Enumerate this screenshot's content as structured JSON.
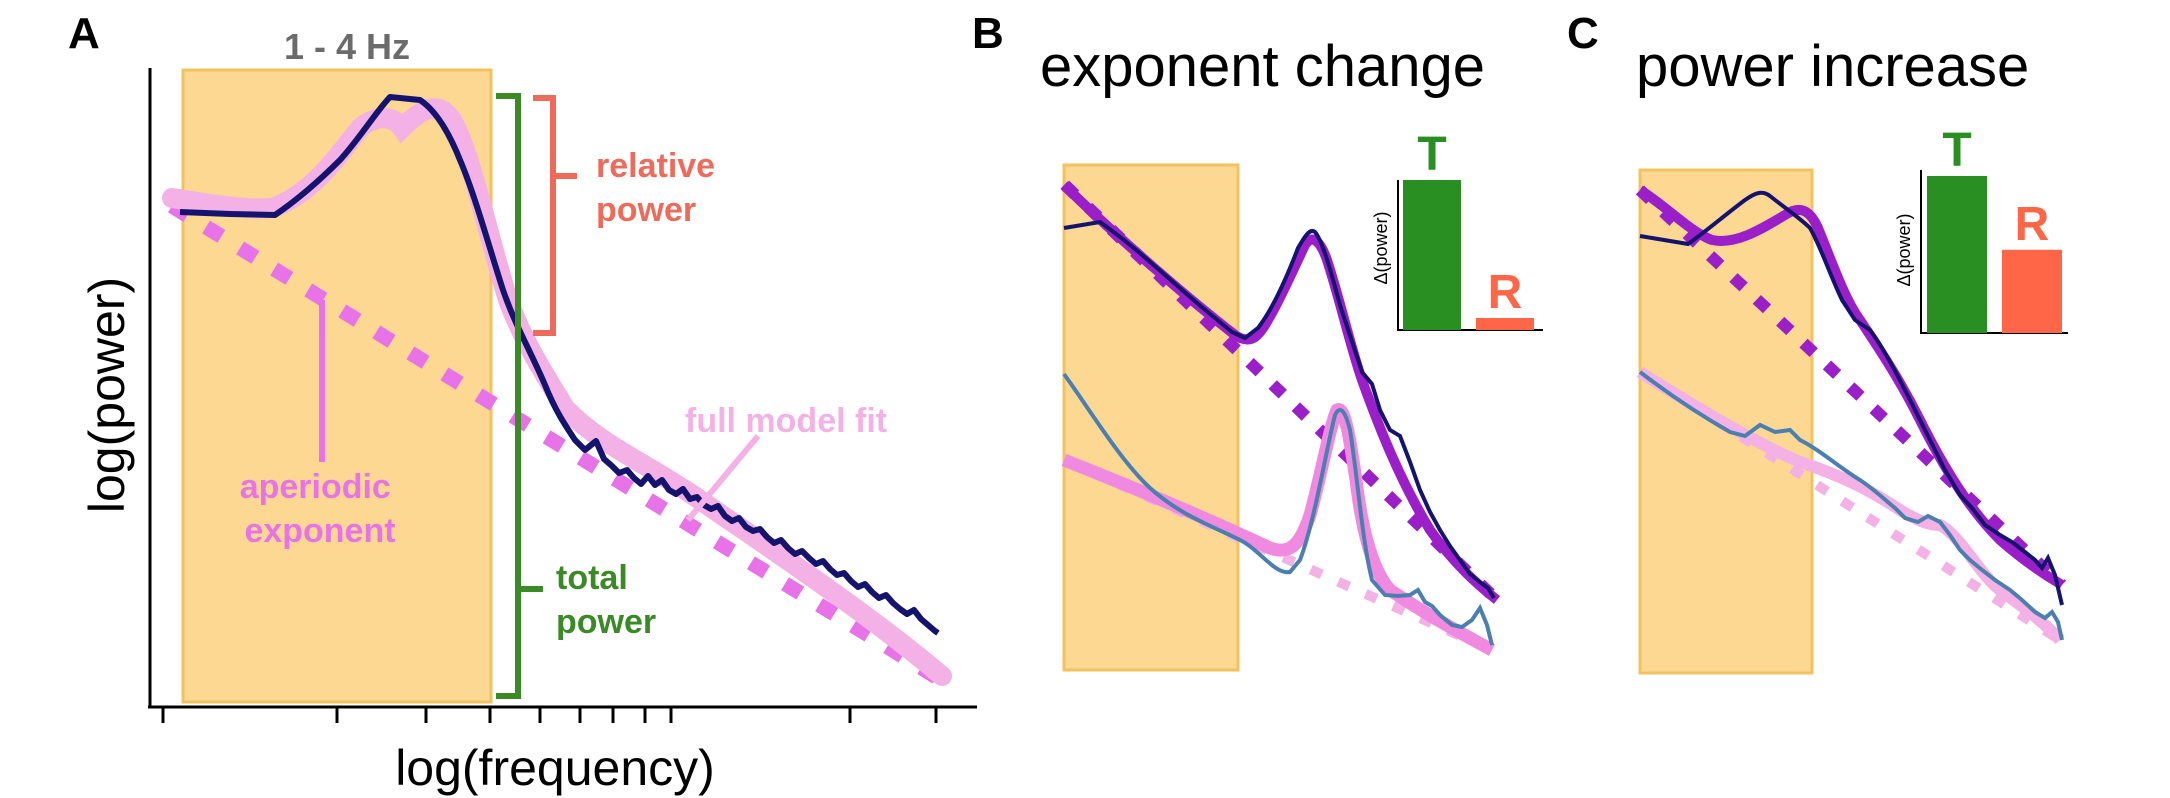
{
  "colors": {
    "band_fill": "#fdd893",
    "band_stroke": "#f2c25f",
    "spectrum": "#14146e",
    "model_fit": "#f08ae0",
    "model_fit_light": "#f3b1e6",
    "aperiodic": "#e873e8",
    "purple_fit": "#9a1fc9",
    "blue_spectrum": "#4a7fb0",
    "relative_power": "#ee6a5a",
    "total_power": "#3a8a25",
    "bar_T": "#2a8f22",
    "bar_R": "#ff6648"
  },
  "panel_a": {
    "letter": "A",
    "band_label": "1 - 4 Hz",
    "xlabel": "log(frequency)",
    "ylabel": "log(power)",
    "annotations": {
      "relative_power": [
        "relative",
        "power"
      ],
      "total_power": [
        "total",
        "power"
      ],
      "aperiodic_exponent": [
        "aperiodic",
        "exponent"
      ],
      "full_model_fit": "full model fit"
    }
  },
  "panel_b": {
    "letter": "B",
    "title": "exponent change",
    "inset": {
      "ylabel": "Δ(power)",
      "bars": [
        {
          "label": "T",
          "value": 1.0
        },
        {
          "label": "R",
          "value": 0.08
        }
      ]
    }
  },
  "panel_c": {
    "letter": "C",
    "title": "power increase",
    "inset": {
      "ylabel": "Δ(power)",
      "bars": [
        {
          "label": "T",
          "value": 1.0
        },
        {
          "label": "R",
          "value": 0.53
        }
      ]
    }
  }
}
